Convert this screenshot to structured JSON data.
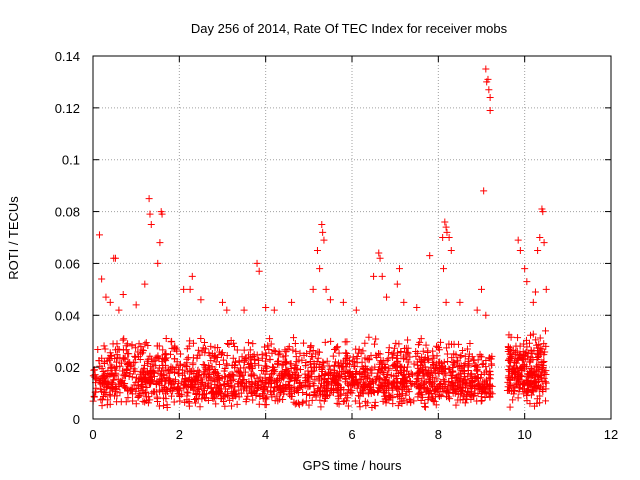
{
  "chart_data": {
    "type": "scatter",
    "title": "Day 256 of 2014, Rate Of TEC Index for receiver mobs",
    "xlabel": "GPS time / hours",
    "ylabel": "ROTI / TECUs",
    "xlim": [
      0,
      12
    ],
    "ylim": [
      0,
      0.14
    ],
    "xticks": [
      0,
      2,
      4,
      6,
      8,
      10,
      12
    ],
    "xtick_labels": [
      "0",
      "2",
      "4",
      "6",
      "8",
      "10",
      "12"
    ],
    "yticks": [
      0,
      0.02,
      0.04,
      0.06,
      0.08,
      0.1,
      0.12,
      0.14
    ],
    "ytick_labels": [
      "0",
      "0.02",
      "0.04",
      "0.06",
      "0.08",
      "0.1",
      "0.12",
      "0.14"
    ],
    "grid": true,
    "marker": "plus",
    "color": "#ff0000",
    "data_gaps_hours": [
      [
        9.25,
        9.6
      ]
    ],
    "points": [
      [
        0.15,
        0.071
      ],
      [
        0.2,
        0.054
      ],
      [
        0.3,
        0.047
      ],
      [
        0.48,
        0.062
      ],
      [
        0.52,
        0.062
      ],
      [
        1.3,
        0.085
      ],
      [
        1.32,
        0.079
      ],
      [
        1.35,
        0.075
      ],
      [
        1.55,
        0.068
      ],
      [
        1.58,
        0.08
      ],
      [
        1.6,
        0.079
      ],
      [
        1.5,
        0.06
      ],
      [
        1.2,
        0.052
      ],
      [
        2.3,
        0.055
      ],
      [
        2.25,
        0.05
      ],
      [
        3.0,
        0.045
      ],
      [
        3.1,
        0.042
      ],
      [
        3.8,
        0.06
      ],
      [
        3.85,
        0.057
      ],
      [
        4.2,
        0.042
      ],
      [
        5.2,
        0.065
      ],
      [
        5.3,
        0.075
      ],
      [
        5.32,
        0.072
      ],
      [
        5.35,
        0.069
      ],
      [
        5.25,
        0.058
      ],
      [
        5.4,
        0.05
      ],
      [
        5.8,
        0.045
      ],
      [
        6.5,
        0.055
      ],
      [
        6.62,
        0.064
      ],
      [
        6.65,
        0.062
      ],
      [
        6.7,
        0.055
      ],
      [
        7.05,
        0.052
      ],
      [
        7.1,
        0.058
      ],
      [
        7.8,
        0.063
      ],
      [
        8.1,
        0.07
      ],
      [
        8.15,
        0.076
      ],
      [
        8.18,
        0.074
      ],
      [
        8.2,
        0.072
      ],
      [
        8.25,
        0.07
      ],
      [
        8.3,
        0.065
      ],
      [
        8.12,
        0.058
      ],
      [
        8.18,
        0.045
      ],
      [
        9.05,
        0.088
      ],
      [
        9.1,
        0.135
      ],
      [
        9.12,
        0.13
      ],
      [
        9.15,
        0.131
      ],
      [
        9.17,
        0.127
      ],
      [
        9.2,
        0.124
      ],
      [
        9.2,
        0.119
      ],
      [
        9.0,
        0.05
      ],
      [
        9.1,
        0.04
      ],
      [
        9.85,
        0.069
      ],
      [
        9.9,
        0.065
      ],
      [
        10.0,
        0.058
      ],
      [
        10.05,
        0.053
      ],
      [
        10.3,
        0.065
      ],
      [
        10.35,
        0.07
      ],
      [
        10.4,
        0.081
      ],
      [
        10.42,
        0.08
      ],
      [
        10.45,
        0.068
      ],
      [
        10.5,
        0.05
      ],
      [
        10.25,
        0.049
      ],
      [
        0.4,
        0.045
      ],
      [
        0.7,
        0.048
      ],
      [
        0.6,
        0.042
      ],
      [
        1.0,
        0.044
      ],
      [
        2.1,
        0.05
      ],
      [
        2.5,
        0.046
      ],
      [
        3.5,
        0.042
      ],
      [
        4.6,
        0.045
      ],
      [
        5.1,
        0.05
      ],
      [
        5.5,
        0.046
      ],
      [
        6.1,
        0.042
      ],
      [
        6.8,
        0.047
      ],
      [
        7.5,
        0.043
      ],
      [
        8.5,
        0.045
      ],
      [
        8.9,
        0.042
      ],
      [
        10.2,
        0.045
      ],
      [
        7.2,
        0.045
      ],
      [
        4.0,
        0.043
      ]
    ],
    "dense_band": [
      {
        "from": 0.0,
        "to": 9.25,
        "low": 0.004,
        "high": 0.032,
        "count": 1900,
        "seed": 7
      },
      {
        "from": 9.6,
        "to": 10.5,
        "low": 0.004,
        "high": 0.035,
        "count": 260,
        "seed": 11
      }
    ]
  }
}
